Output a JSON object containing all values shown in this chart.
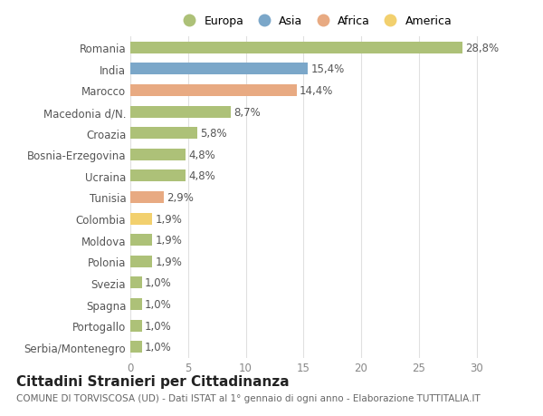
{
  "categories": [
    "Romania",
    "India",
    "Marocco",
    "Macedonia d/N.",
    "Croazia",
    "Bosnia-Erzegovina",
    "Ucraina",
    "Tunisia",
    "Colombia",
    "Moldova",
    "Polonia",
    "Svezia",
    "Spagna",
    "Portogallo",
    "Serbia/Montenegro"
  ],
  "values": [
    28.8,
    15.4,
    14.4,
    8.7,
    5.8,
    4.8,
    4.8,
    2.9,
    1.9,
    1.9,
    1.9,
    1.0,
    1.0,
    1.0,
    1.0
  ],
  "labels": [
    "28,8%",
    "15,4%",
    "14,4%",
    "8,7%",
    "5,8%",
    "4,8%",
    "4,8%",
    "2,9%",
    "1,9%",
    "1,9%",
    "1,9%",
    "1,0%",
    "1,0%",
    "1,0%",
    "1,0%"
  ],
  "continents": [
    "Europa",
    "Asia",
    "Africa",
    "Europa",
    "Europa",
    "Europa",
    "Europa",
    "Africa",
    "America",
    "Europa",
    "Europa",
    "Europa",
    "Europa",
    "Europa",
    "Europa"
  ],
  "continent_colors": {
    "Europa": "#adc178",
    "Asia": "#7ba7c9",
    "Africa": "#e8aa82",
    "America": "#f2d06e"
  },
  "legend_order": [
    "Europa",
    "Asia",
    "Africa",
    "America"
  ],
  "title": "Cittadini Stranieri per Cittadinanza",
  "subtitle": "COMUNE DI TORVISCOSA (UD) - Dati ISTAT al 1° gennaio di ogni anno - Elaborazione TUTTITALIA.IT",
  "xlim": [
    0,
    32
  ],
  "xticks": [
    0,
    5,
    10,
    15,
    20,
    25,
    30
  ],
  "background_color": "#ffffff",
  "bar_height": 0.55,
  "grid_color": "#e0e0e0",
  "label_fontsize": 8.5,
  "tick_fontsize": 8.5,
  "title_fontsize": 11,
  "subtitle_fontsize": 7.5,
  "ytick_color": "#555555",
  "xtick_color": "#888888",
  "label_color": "#555555"
}
